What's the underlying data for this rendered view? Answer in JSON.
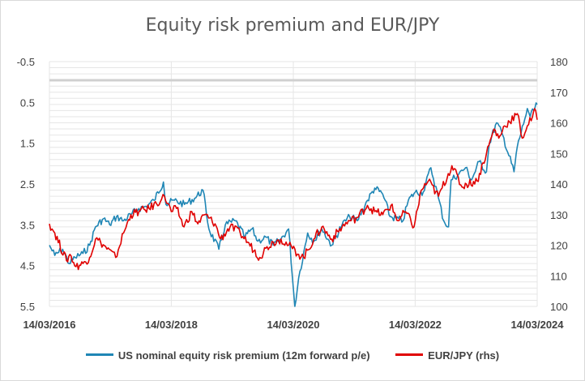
{
  "chart_data": {
    "type": "line",
    "title": "Equity risk premium and EUR/JPY",
    "x_tick_labels": [
      "14/03/2016",
      "14/03/2018",
      "14/03/2020",
      "14/03/2022",
      "14/03/2024"
    ],
    "x_range": [
      "2016-03-14",
      "2024-03-14"
    ],
    "y_left": {
      "inverted": true,
      "range": [
        -0.5,
        5.5
      ],
      "tick_labels": [
        "-0.5",
        "0.5",
        "1.5",
        "2.5",
        "3.5",
        "4.5",
        "5.5"
      ]
    },
    "y_right": {
      "range": [
        100,
        180
      ],
      "tick_labels": [
        "100",
        "110",
        "120",
        "130",
        "140",
        "150",
        "160",
        "170",
        "180"
      ]
    },
    "grid": true,
    "legend_position": "bottom",
    "series": [
      {
        "name": "US nominal equity risk premium (12m forward p/e)",
        "axis": "left",
        "color": "#1f86b5",
        "points": [
          [
            "2016-03-14",
            4.0
          ],
          [
            "2016-04-15",
            4.25
          ],
          [
            "2016-06-01",
            4.1
          ],
          [
            "2016-07-10",
            4.45
          ],
          [
            "2016-08-15",
            4.3
          ],
          [
            "2016-10-01",
            4.2
          ],
          [
            "2016-11-10",
            4.0
          ],
          [
            "2016-12-15",
            3.55
          ],
          [
            "2017-02-01",
            3.35
          ],
          [
            "2017-03-10",
            3.5
          ],
          [
            "2017-04-20",
            3.3
          ],
          [
            "2017-06-01",
            3.4
          ],
          [
            "2017-07-15",
            3.25
          ],
          [
            "2017-09-01",
            3.1
          ],
          [
            "2017-10-15",
            3.05
          ],
          [
            "2017-12-01",
            2.9
          ],
          [
            "2018-01-26",
            2.45
          ],
          [
            "2018-02-10",
            3.0
          ],
          [
            "2018-04-01",
            2.9
          ],
          [
            "2018-06-01",
            3.0
          ],
          [
            "2018-08-01",
            2.85
          ],
          [
            "2018-09-20",
            2.65
          ],
          [
            "2018-10-25",
            3.6
          ],
          [
            "2018-12-24",
            4.1
          ],
          [
            "2019-02-01",
            3.5
          ],
          [
            "2019-04-01",
            3.4
          ],
          [
            "2019-05-30",
            3.8
          ],
          [
            "2019-07-10",
            3.6
          ],
          [
            "2019-08-15",
            3.9
          ],
          [
            "2019-10-01",
            3.8
          ],
          [
            "2019-11-15",
            4.0
          ],
          [
            "2019-12-31",
            3.85
          ],
          [
            "2020-02-15",
            3.6
          ],
          [
            "2020-03-23",
            5.5
          ],
          [
            "2020-04-15",
            4.8
          ],
          [
            "2020-06-08",
            3.7
          ],
          [
            "2020-07-15",
            3.9
          ],
          [
            "2020-09-01",
            3.6
          ],
          [
            "2020-10-30",
            4.0
          ],
          [
            "2020-12-31",
            3.5
          ],
          [
            "2021-02-15",
            3.3
          ],
          [
            "2021-04-01",
            3.4
          ],
          [
            "2021-06-01",
            2.9
          ],
          [
            "2021-07-15",
            2.6
          ],
          [
            "2021-09-01",
            2.75
          ],
          [
            "2021-10-15",
            3.3
          ],
          [
            "2021-12-31",
            3.4
          ],
          [
            "2022-02-01",
            2.9
          ],
          [
            "2022-03-14",
            2.7
          ],
          [
            "2022-05-01",
            2.7
          ],
          [
            "2022-06-16",
            2.1
          ],
          [
            "2022-08-01",
            2.85
          ],
          [
            "2022-09-01",
            3.4
          ],
          [
            "2022-09-30",
            3.55
          ],
          [
            "2022-10-15",
            2.4
          ],
          [
            "2022-12-01",
            2.25
          ],
          [
            "2023-01-10",
            2.1
          ],
          [
            "2023-02-15",
            2.4
          ],
          [
            "2023-04-01",
            1.95
          ],
          [
            "2023-05-15",
            2.2
          ],
          [
            "2023-06-01",
            1.5
          ],
          [
            "2023-07-15",
            1.0
          ],
          [
            "2023-08-20",
            1.3
          ],
          [
            "2023-10-27",
            2.2
          ],
          [
            "2023-11-15",
            1.6
          ],
          [
            "2023-12-31",
            0.9
          ],
          [
            "2024-01-15",
            0.65
          ],
          [
            "2024-02-01",
            0.85
          ],
          [
            "2024-03-14",
            0.55
          ]
        ]
      },
      {
        "name": "EUR/JPY (rhs)",
        "axis": "right",
        "color": "#e00000",
        "points": [
          [
            "2016-03-14",
            127
          ],
          [
            "2016-04-15",
            124
          ],
          [
            "2016-06-24",
            115
          ],
          [
            "2016-07-15",
            117
          ],
          [
            "2016-08-20",
            113
          ],
          [
            "2016-10-01",
            114
          ],
          [
            "2016-11-10",
            116
          ],
          [
            "2016-12-15",
            122
          ],
          [
            "2017-01-15",
            121
          ],
          [
            "2017-04-15",
            116
          ],
          [
            "2017-06-01",
            124
          ],
          [
            "2017-07-15",
            130
          ],
          [
            "2017-09-01",
            131
          ],
          [
            "2017-11-01",
            132
          ],
          [
            "2018-01-15",
            135
          ],
          [
            "2018-02-01",
            136
          ],
          [
            "2018-03-14",
            131
          ],
          [
            "2018-04-15",
            132
          ],
          [
            "2018-05-29",
            126
          ],
          [
            "2018-07-15",
            131
          ],
          [
            "2018-08-20",
            127
          ],
          [
            "2018-10-01",
            130
          ],
          [
            "2018-12-01",
            127
          ],
          [
            "2019-01-03",
            122
          ],
          [
            "2019-03-01",
            126
          ],
          [
            "2019-05-01",
            124
          ],
          [
            "2019-06-15",
            121
          ],
          [
            "2019-08-26",
            116
          ],
          [
            "2019-10-01",
            119
          ],
          [
            "2019-11-15",
            121
          ],
          [
            "2019-12-31",
            122
          ],
          [
            "2020-02-15",
            120
          ],
          [
            "2020-04-15",
            117
          ],
          [
            "2020-05-15",
            116
          ],
          [
            "2020-07-15",
            122
          ],
          [
            "2020-09-01",
            126
          ],
          [
            "2020-10-30",
            122
          ],
          [
            "2020-12-31",
            126
          ],
          [
            "2021-02-15",
            128
          ],
          [
            "2021-04-01",
            129
          ],
          [
            "2021-06-01",
            133
          ],
          [
            "2021-07-15",
            131
          ],
          [
            "2021-09-01",
            130
          ],
          [
            "2021-10-20",
            133
          ],
          [
            "2021-12-01",
            128
          ],
          [
            "2022-01-15",
            131
          ],
          [
            "2022-03-07",
            126
          ],
          [
            "2022-04-20",
            138
          ],
          [
            "2022-06-01",
            141
          ],
          [
            "2022-08-01",
            136
          ],
          [
            "2022-10-20",
            146
          ],
          [
            "2022-12-20",
            139
          ],
          [
            "2023-01-15",
            140
          ],
          [
            "2023-03-20",
            141
          ],
          [
            "2023-05-15",
            150
          ],
          [
            "2023-06-30",
            158
          ],
          [
            "2023-07-28",
            155
          ],
          [
            "2023-09-01",
            159
          ],
          [
            "2023-11-16",
            163
          ],
          [
            "2023-12-15",
            155
          ],
          [
            "2024-01-15",
            159
          ],
          [
            "2024-02-15",
            162
          ],
          [
            "2024-03-05",
            164
          ],
          [
            "2024-03-14",
            161
          ]
        ]
      }
    ]
  }
}
